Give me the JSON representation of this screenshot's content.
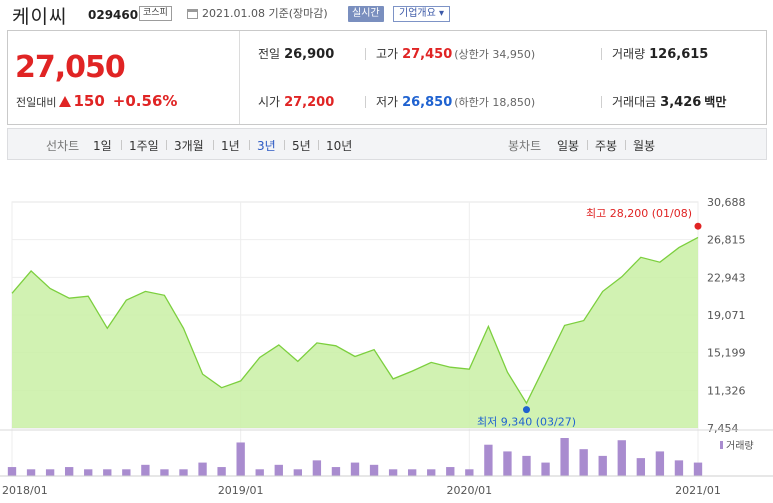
{
  "header": {
    "company": "케이씨",
    "ticker": "029460",
    "market": "코스피",
    "as_of": "2021.01.08 기준(장마감)",
    "realtime_label": "실시간",
    "overview_label": "기업개요 ▾"
  },
  "price": {
    "current": "27,050",
    "change_label": "전일대비",
    "change": "150",
    "change_pct": "+0.56%"
  },
  "stats": {
    "prev_close_label": "전일",
    "prev_close": "26,900",
    "high_label": "고가",
    "high": "27,450",
    "upper_limit": "(상한가 34,950)",
    "volume_label": "거래량",
    "volume": "126,615",
    "open_label": "시가",
    "open": "27,200",
    "low_label": "저가",
    "low": "26,850",
    "lower_limit": "(하한가 18,850)",
    "amount_label": "거래대금",
    "amount": "3,426",
    "amount_unit": "백만"
  },
  "tabs": {
    "line_title": "선차트",
    "periods": [
      "1일",
      "1주일",
      "3개월",
      "1년",
      "3년",
      "5년",
      "10년"
    ],
    "active": "3년",
    "candle_title": "봉차트",
    "candles": [
      "일봉",
      "주봉",
      "월봉"
    ]
  },
  "colors": {
    "price_red": "#e02424",
    "price_blue": "#1f62d0",
    "area_fill": "#c9f0a5",
    "line": "#7ccf3e",
    "volume_bar": "#a98ccf"
  },
  "chart_data": {
    "type": "area",
    "x": [
      "2018/01",
      "2018/02",
      "2018/03",
      "2018/04",
      "2018/05",
      "2018/06",
      "2018/07",
      "2018/08",
      "2018/09",
      "2018/10",
      "2018/11",
      "2018/12",
      "2019/01",
      "2019/02",
      "2019/03",
      "2019/04",
      "2019/05",
      "2019/06",
      "2019/07",
      "2019/08",
      "2019/09",
      "2019/10",
      "2019/11",
      "2019/12",
      "2020/01",
      "2020/02",
      "2020/03",
      "2020/04",
      "2020/05",
      "2020/06",
      "2020/07",
      "2020/08",
      "2020/09",
      "2020/10",
      "2020/11",
      "2020/12",
      "2021/01"
    ],
    "series": [
      {
        "values": [
          21300,
          23600,
          21800,
          20800,
          21000,
          17700,
          20600,
          21500,
          21100,
          17700,
          13000,
          11600,
          12300,
          14700,
          16000,
          14300,
          16200,
          15900,
          14800,
          15500,
          12500,
          13300,
          14200,
          13700,
          13500,
          17900,
          13200,
          10000,
          14000,
          18000,
          18500,
          21500,
          23000,
          25000,
          24500,
          26000,
          27050
        ]
      }
    ],
    "volume": [
      4,
      3,
      3,
      4,
      3,
      3,
      3,
      5,
      3,
      3,
      6,
      4,
      15,
      3,
      5,
      3,
      7,
      4,
      6,
      5,
      3,
      3,
      3,
      4,
      3,
      14,
      11,
      9,
      6,
      17,
      12,
      9,
      16,
      8,
      11,
      7,
      6
    ],
    "y_ticks": [
      "30,688",
      "26,815",
      "22,943",
      "19,071",
      "15,199",
      "11,326",
      "7,454"
    ],
    "ylim": [
      7454,
      30688
    ],
    "x_ticks": [
      "2018/01",
      "2019/01",
      "2020/01",
      "2021/01"
    ],
    "max_label": "최고 28,200 (01/08)",
    "min_label": "최저 9,340 (03/27)",
    "max_value": 28200,
    "min_value": 9340,
    "volume_legend": "거래량",
    "grid": true
  }
}
